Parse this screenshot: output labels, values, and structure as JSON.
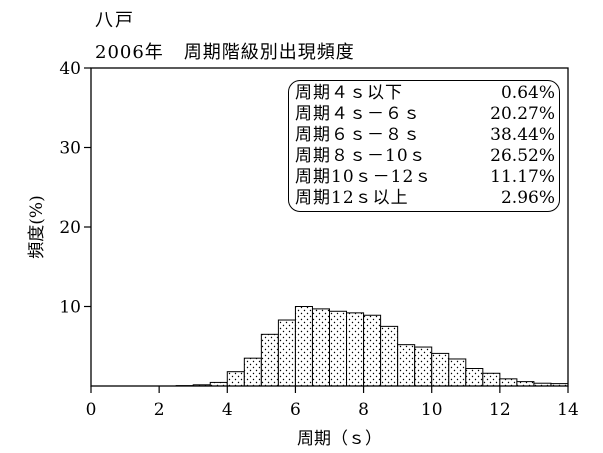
{
  "header": {
    "station": "八戸",
    "year": "2006年",
    "title": "周期階級別出現頻度"
  },
  "legend": {
    "items": [
      {
        "label": "周期４ｓ以下",
        "value": "0.64%"
      },
      {
        "label": "周期４ｓ－６ｓ",
        "value": "20.27%"
      },
      {
        "label": "周期６ｓ－８ｓ",
        "value": "38.44%"
      },
      {
        "label": "周期８ｓ－10ｓ",
        "value": "26.52%"
      },
      {
        "label": "周期10ｓ－12ｓ",
        "value": "11.17%"
      },
      {
        "label": "周期12ｓ以上",
        "value": "2.96%"
      }
    ]
  },
  "chart_data": {
    "type": "bar",
    "title": "周期階級別出現頻度",
    "xlabel": "周期（ｓ）",
    "ylabel": "頻度(%)",
    "xlim": [
      0,
      14
    ],
    "ylim": [
      0,
      40
    ],
    "xticks": [
      0,
      2,
      4,
      6,
      8,
      10,
      12,
      14
    ],
    "yticks": [
      10,
      20,
      30,
      40
    ],
    "bin_width": 0.5,
    "bins": [
      {
        "x0": 2.5,
        "value": 0.05
      },
      {
        "x0": 3.0,
        "value": 0.15
      },
      {
        "x0": 3.5,
        "value": 0.45
      },
      {
        "x0": 4.0,
        "value": 1.8
      },
      {
        "x0": 4.5,
        "value": 3.5
      },
      {
        "x0": 5.0,
        "value": 6.5
      },
      {
        "x0": 5.5,
        "value": 8.3
      },
      {
        "x0": 6.0,
        "value": 10.0
      },
      {
        "x0": 6.5,
        "value": 9.7
      },
      {
        "x0": 7.0,
        "value": 9.4
      },
      {
        "x0": 7.5,
        "value": 9.2
      },
      {
        "x0": 8.0,
        "value": 8.9
      },
      {
        "x0": 8.5,
        "value": 7.5
      },
      {
        "x0": 9.0,
        "value": 5.2
      },
      {
        "x0": 9.5,
        "value": 4.9
      },
      {
        "x0": 10.0,
        "value": 4.1
      },
      {
        "x0": 10.5,
        "value": 3.4
      },
      {
        "x0": 11.0,
        "value": 2.2
      },
      {
        "x0": 11.5,
        "value": 1.6
      },
      {
        "x0": 12.0,
        "value": 0.9
      },
      {
        "x0": 12.5,
        "value": 0.55
      },
      {
        "x0": 13.0,
        "value": 0.35
      },
      {
        "x0": 13.5,
        "value": 0.3
      }
    ],
    "grid": false,
    "legend_position": "top-right"
  }
}
